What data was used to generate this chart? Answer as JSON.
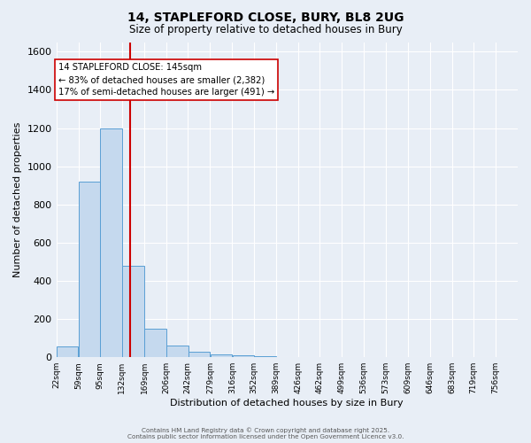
{
  "title1": "14, STAPLEFORD CLOSE, BURY, BL8 2UG",
  "title2": "Size of property relative to detached houses in Bury",
  "xlabel": "Distribution of detached houses by size in Bury",
  "ylabel": "Number of detached properties",
  "bin_edges": [
    22,
    59,
    95,
    132,
    169,
    206,
    242,
    279,
    316,
    352,
    389,
    426,
    462,
    499,
    536,
    573,
    609,
    646,
    683,
    719,
    756
  ],
  "bar_heights": [
    55,
    920,
    1200,
    480,
    150,
    60,
    30,
    15,
    10,
    5,
    0,
    0,
    0,
    0,
    0,
    0,
    0,
    0,
    0,
    0
  ],
  "bar_color": "#c5d9ee",
  "bar_edge_color": "#5a9fd4",
  "background_color": "#e8eef6",
  "grid_color": "#ffffff",
  "red_line_x": 145,
  "ylim": [
    0,
    1650
  ],
  "yticks": [
    0,
    200,
    400,
    600,
    800,
    1000,
    1200,
    1400,
    1600
  ],
  "annotation_title": "14 STAPLEFORD CLOSE: 145sqm",
  "annotation_line1": "← 83% of detached houses are smaller (2,382)",
  "annotation_line2": "17% of semi-detached houses are larger (491) →",
  "footnote1": "Contains HM Land Registry data © Crown copyright and database right 2025.",
  "footnote2": "Contains public sector information licensed under the Open Government Licence v3.0."
}
